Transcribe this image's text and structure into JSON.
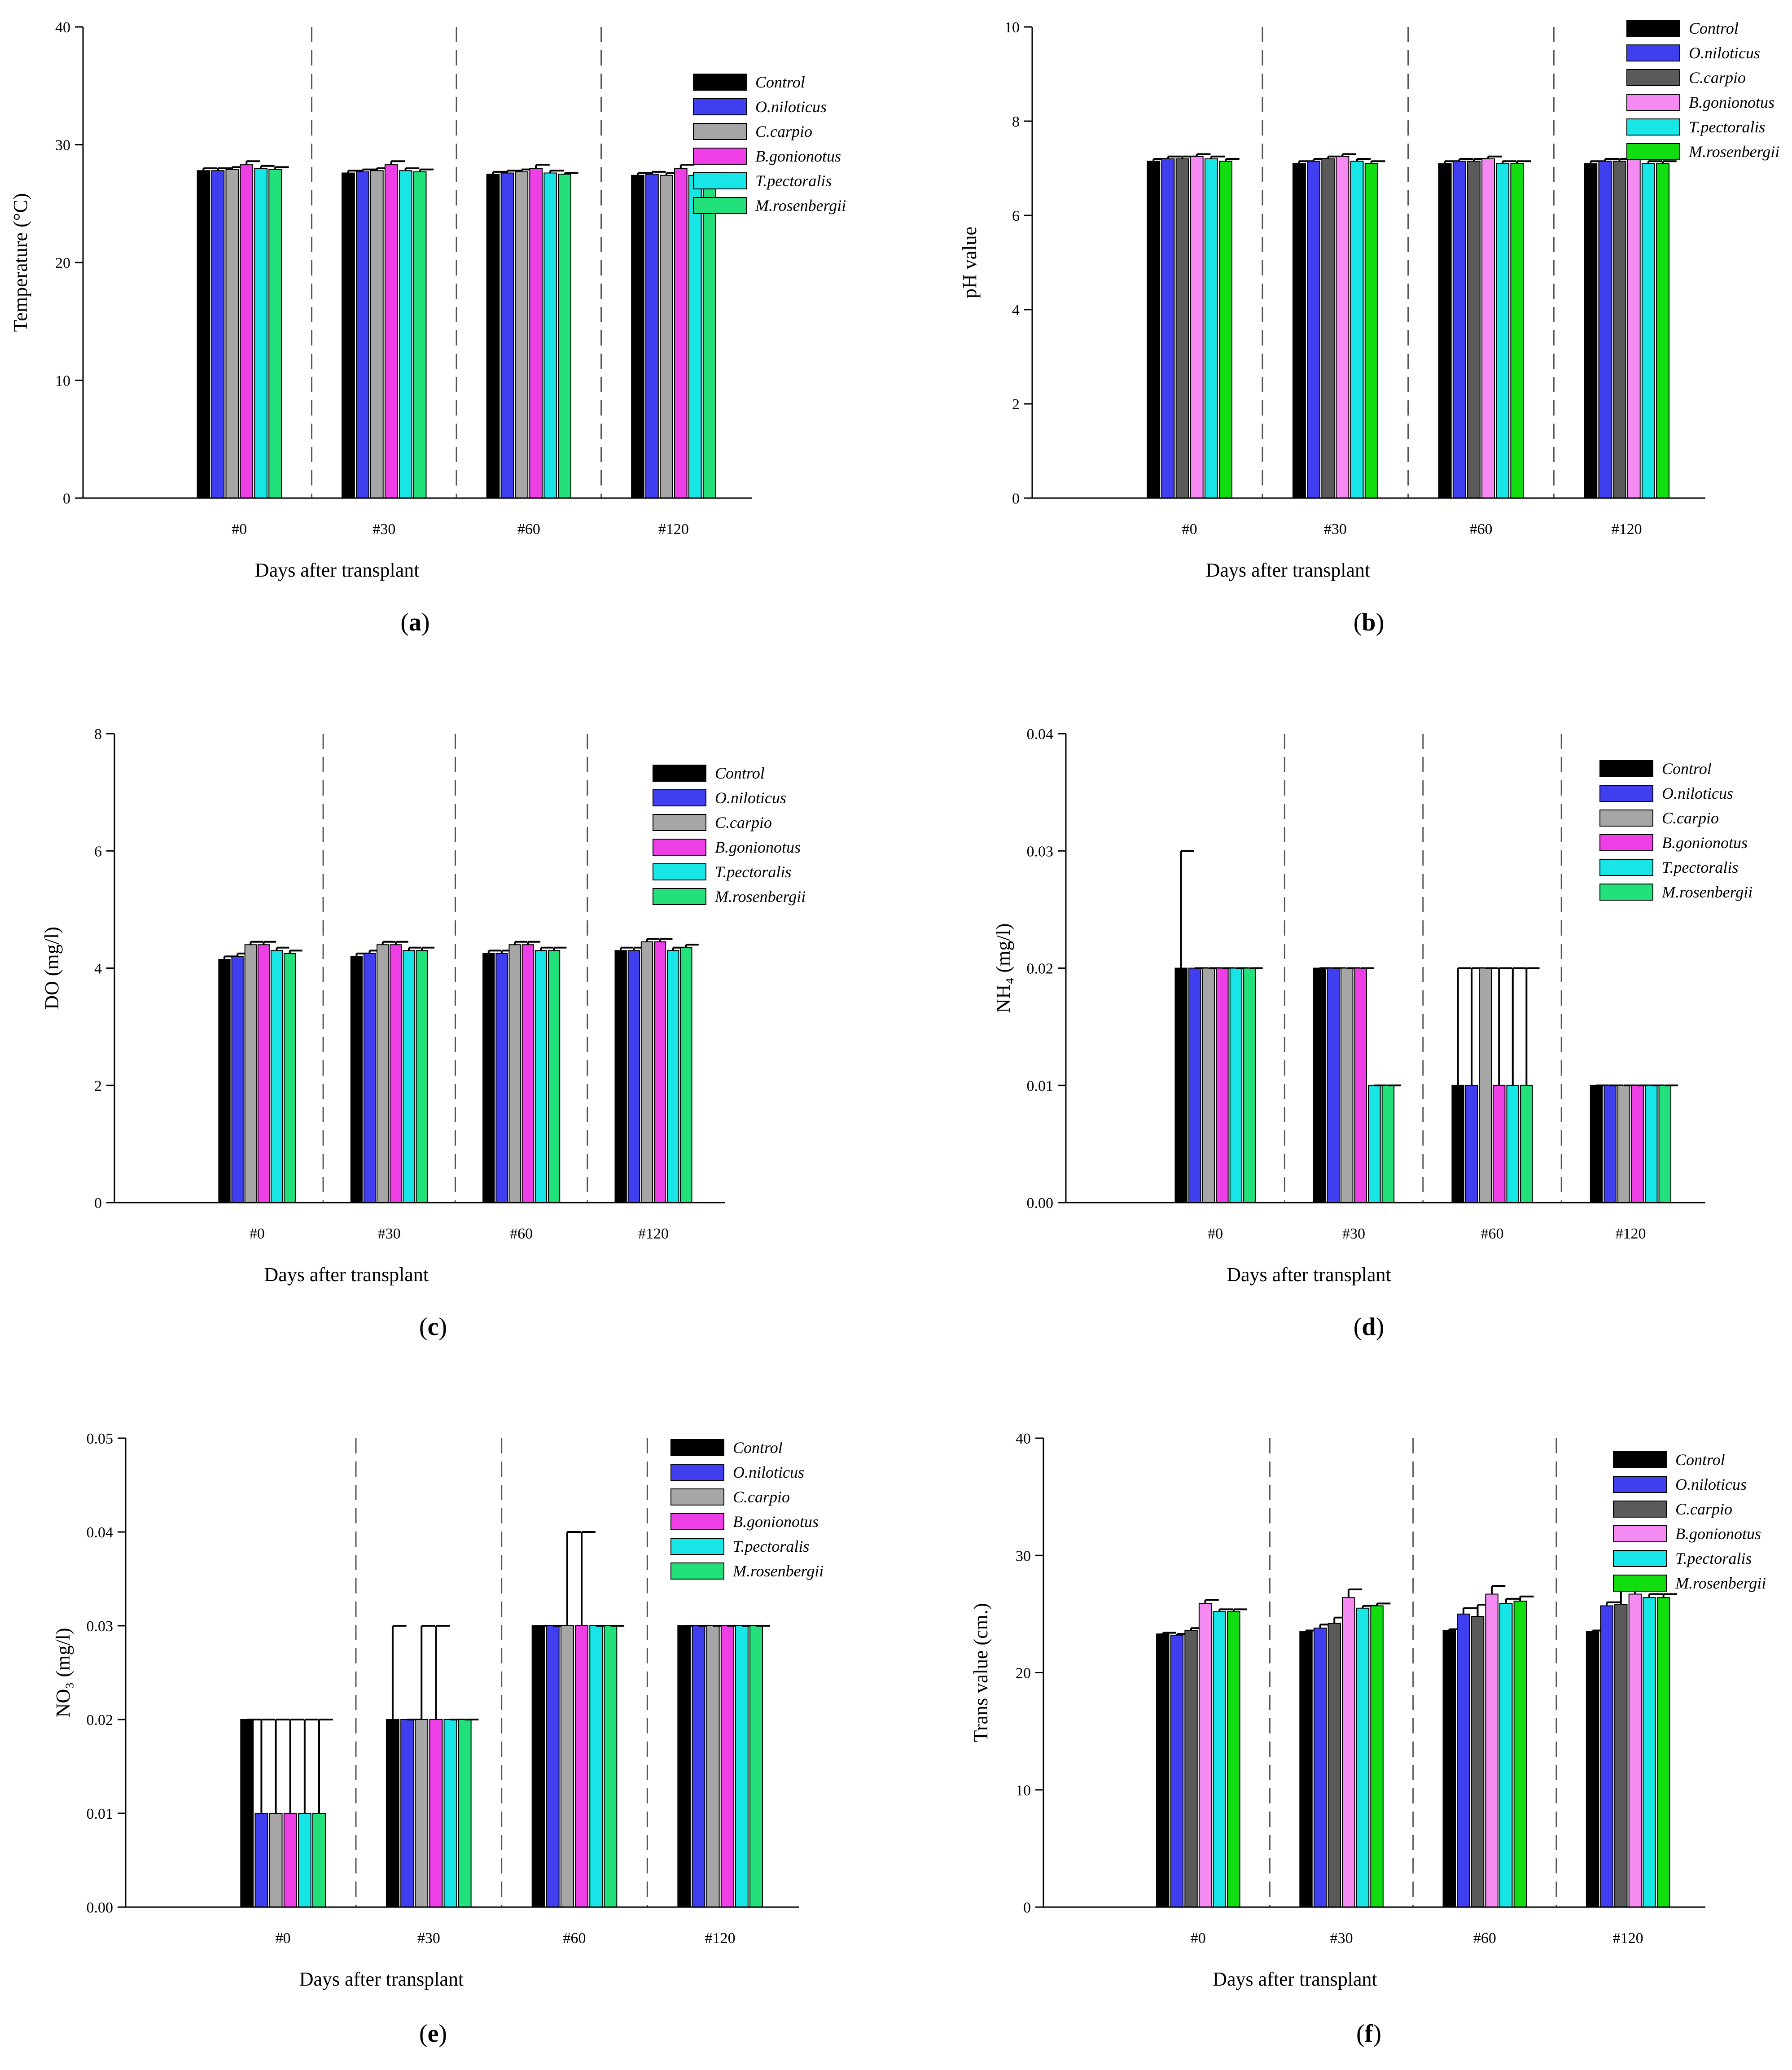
{
  "figure": {
    "panel_count": 6
  },
  "chart_data": [
    {
      "id": "a",
      "type": "bar",
      "panel_label": "a",
      "title": "",
      "xlabel": "Days after transplant",
      "ylabel": "Temperature (°C)",
      "ylim": [
        0,
        40
      ],
      "yticks": [
        "0",
        "10",
        "20",
        "30",
        "40"
      ],
      "categories": [
        "#0",
        "#30",
        "#60",
        "#120"
      ],
      "series": [
        {
          "name": "Control",
          "color": "#000000",
          "values": [
            27.8,
            27.6,
            27.5,
            27.4
          ],
          "errors": [
            0.2,
            0.2,
            0.2,
            0.2
          ]
        },
        {
          "name": "O.niloticus",
          "color": "#3f3ff0",
          "values": [
            27.8,
            27.7,
            27.6,
            27.5
          ],
          "errors": [
            0.2,
            0.2,
            0.2,
            0.2
          ]
        },
        {
          "name": "C.carpio",
          "color": "#a6a6a6",
          "values": [
            27.9,
            27.8,
            27.7,
            27.4
          ],
          "errors": [
            0.2,
            0.2,
            0.2,
            0.2
          ]
        },
        {
          "name": "B.gonionotus",
          "color": "#ee3fe6",
          "values": [
            28.3,
            28.3,
            28.0,
            28.0
          ],
          "errors": [
            0.3,
            0.3,
            0.3,
            0.3
          ]
        },
        {
          "name": "T.pectoralis",
          "color": "#18e6e6",
          "values": [
            28.0,
            27.8,
            27.6,
            27.4
          ],
          "errors": [
            0.2,
            0.2,
            0.2,
            0.2
          ]
        },
        {
          "name": "M.rosenbergii",
          "color": "#22e07a",
          "values": [
            27.9,
            27.7,
            27.5,
            27.5
          ],
          "errors": [
            0.2,
            0.2,
            0.1,
            0.1
          ]
        }
      ],
      "legend_position": "top-right"
    },
    {
      "id": "b",
      "type": "bar",
      "panel_label": "b",
      "title": "",
      "xlabel": "Days after transplant",
      "ylabel": "pH  value",
      "ylim": [
        0,
        10
      ],
      "yticks": [
        "0",
        "2",
        "4",
        "6",
        "8",
        "10"
      ],
      "categories": [
        "#0",
        "#30",
        "#60",
        "#120"
      ],
      "series": [
        {
          "name": "Control",
          "color": "#000000",
          "values": [
            7.15,
            7.1,
            7.1,
            7.1
          ],
          "errors": [
            0.05,
            0.05,
            0.05,
            0.05
          ]
        },
        {
          "name": "O.niloticus",
          "color": "#3f3ff0",
          "values": [
            7.2,
            7.15,
            7.15,
            7.15
          ],
          "errors": [
            0.05,
            0.05,
            0.05,
            0.05
          ]
        },
        {
          "name": "C.carpio",
          "color": "#5a5a5a",
          "values": [
            7.2,
            7.2,
            7.15,
            7.15
          ],
          "errors": [
            0.05,
            0.05,
            0.05,
            0.05
          ]
        },
        {
          "name": "B.gonionotus",
          "color": "#f58bf2",
          "values": [
            7.25,
            7.25,
            7.2,
            7.2
          ],
          "errors": [
            0.05,
            0.05,
            0.05,
            0.05
          ]
        },
        {
          "name": "T.pectoralis",
          "color": "#18e6e6",
          "values": [
            7.2,
            7.15,
            7.1,
            7.1
          ],
          "errors": [
            0.05,
            0.05,
            0.05,
            0.05
          ]
        },
        {
          "name": "M.rosenbergii",
          "color": "#11dd11",
          "values": [
            7.15,
            7.1,
            7.1,
            7.1
          ],
          "errors": [
            0.05,
            0.05,
            0.05,
            0.05
          ]
        }
      ],
      "legend_position": "top-right"
    },
    {
      "id": "c",
      "type": "bar",
      "panel_label": "c",
      "title": "",
      "xlabel": "Days after transplant",
      "ylabel": "DO (mg/l)",
      "ylim": [
        0,
        8
      ],
      "yticks": [
        "0",
        "2",
        "4",
        "6",
        "8"
      ],
      "categories": [
        "#0",
        "#30",
        "#60",
        "#120"
      ],
      "series": [
        {
          "name": "Control",
          "color": "#000000",
          "values": [
            4.15,
            4.2,
            4.25,
            4.3
          ],
          "errors": [
            0.05,
            0.05,
            0.05,
            0.05
          ]
        },
        {
          "name": "O.niloticus",
          "color": "#3f3ff0",
          "values": [
            4.2,
            4.25,
            4.25,
            4.3
          ],
          "errors": [
            0.05,
            0.05,
            0.05,
            0.05
          ]
        },
        {
          "name": "C.carpio",
          "color": "#a6a6a6",
          "values": [
            4.4,
            4.4,
            4.4,
            4.45
          ],
          "errors": [
            0.05,
            0.05,
            0.05,
            0.05
          ]
        },
        {
          "name": "B.gonionotus",
          "color": "#ee3fe6",
          "values": [
            4.4,
            4.4,
            4.4,
            4.45
          ],
          "errors": [
            0.05,
            0.05,
            0.05,
            0.05
          ]
        },
        {
          "name": "T.pectoralis",
          "color": "#18e6e6",
          "values": [
            4.3,
            4.3,
            4.3,
            4.3
          ],
          "errors": [
            0.05,
            0.05,
            0.05,
            0.05
          ]
        },
        {
          "name": "M.rosenbergii",
          "color": "#22e07a",
          "values": [
            4.25,
            4.3,
            4.3,
            4.35
          ],
          "errors": [
            0.05,
            0.05,
            0.05,
            0.05
          ]
        }
      ],
      "legend_position": "top-right"
    },
    {
      "id": "d",
      "type": "bar",
      "panel_label": "d",
      "title": "",
      "xlabel": "Days after transplant",
      "ylabel": "NH₄ (mg/l)",
      "ylim": [
        0,
        0.04
      ],
      "yticks": [
        "0.00",
        "0.01",
        "0.02",
        "0.03",
        "0.04"
      ],
      "categories": [
        "#0",
        "#30",
        "#60",
        "#120"
      ],
      "series": [
        {
          "name": "Control",
          "color": "#000000",
          "values": [
            0.02,
            0.02,
            0.01,
            0.01
          ],
          "errors": [
            0.01,
            0,
            0.01,
            0
          ]
        },
        {
          "name": "O.niloticus",
          "color": "#3f3ff0",
          "values": [
            0.02,
            0.02,
            0.01,
            0.01
          ],
          "errors": [
            0,
            0,
            0.01,
            0
          ]
        },
        {
          "name": "C.carpio",
          "color": "#a6a6a6",
          "values": [
            0.02,
            0.02,
            0.02,
            0.01
          ],
          "errors": [
            0,
            0,
            0,
            0
          ]
        },
        {
          "name": "B.gonionotus",
          "color": "#ee3fe6",
          "values": [
            0.02,
            0.02,
            0.01,
            0.01
          ],
          "errors": [
            0,
            0,
            0.01,
            0
          ]
        },
        {
          "name": "T.pectoralis",
          "color": "#18e6e6",
          "values": [
            0.02,
            0.01,
            0.01,
            0.01
          ],
          "errors": [
            0,
            0,
            0.01,
            0
          ]
        },
        {
          "name": "M.rosenbergii",
          "color": "#22e07a",
          "values": [
            0.02,
            0.01,
            0.01,
            0.01
          ],
          "errors": [
            0,
            0,
            0.01,
            0
          ]
        }
      ],
      "legend_position": "top-right"
    },
    {
      "id": "e",
      "type": "bar",
      "panel_label": "e",
      "title": "",
      "xlabel": "Days after transplant",
      "ylabel": "NO₃  (mg/l)",
      "ylim": [
        0,
        0.05
      ],
      "yticks": [
        "0.00",
        "0.01",
        "0.02",
        "0.03",
        "0.04",
        "0.05"
      ],
      "categories": [
        "#0",
        "#30",
        "#60",
        "#120"
      ],
      "series": [
        {
          "name": "Control",
          "color": "#000000",
          "values": [
            0.02,
            0.02,
            0.03,
            0.03
          ],
          "errors": [
            0,
            0.01,
            0,
            0
          ]
        },
        {
          "name": "O.niloticus",
          "color": "#3f3ff0",
          "values": [
            0.01,
            0.02,
            0.03,
            0.03
          ],
          "errors": [
            0.01,
            0,
            0,
            0
          ]
        },
        {
          "name": "C.carpio",
          "color": "#a6a6a6",
          "values": [
            0.01,
            0.02,
            0.03,
            0.03
          ],
          "errors": [
            0.01,
            0.01,
            0.01,
            0
          ]
        },
        {
          "name": "B.gonionotus",
          "color": "#ee3fe6",
          "values": [
            0.01,
            0.02,
            0.03,
            0.03
          ],
          "errors": [
            0.01,
            0.01,
            0.01,
            0
          ]
        },
        {
          "name": "T.pectoralis",
          "color": "#18e6e6",
          "values": [
            0.01,
            0.02,
            0.03,
            0.03
          ],
          "errors": [
            0.01,
            0,
            0,
            0
          ]
        },
        {
          "name": "M.rosenbergii",
          "color": "#22e07a",
          "values": [
            0.01,
            0.02,
            0.03,
            0.03
          ],
          "errors": [
            0.01,
            0,
            0,
            0
          ]
        }
      ],
      "legend_position": "top-right"
    },
    {
      "id": "f",
      "type": "bar",
      "panel_label": "f",
      "title": "",
      "xlabel": "Days after transplant",
      "ylabel": "Trans value (cm.)",
      "ylim": [
        0,
        40
      ],
      "yticks": [
        "0",
        "10",
        "20",
        "30",
        "40"
      ],
      "categories": [
        "#0",
        "#30",
        "#60",
        "#120"
      ],
      "series": [
        {
          "name": "Control",
          "color": "#000000",
          "values": [
            23.3,
            23.5,
            23.6,
            23.5
          ],
          "errors": [
            0.1,
            0.1,
            0.1,
            0.1
          ]
        },
        {
          "name": "O.niloticus",
          "color": "#3f3ff0",
          "values": [
            23.2,
            23.8,
            25.0,
            25.7
          ],
          "errors": [
            0.1,
            0.3,
            0.5,
            0.3
          ]
        },
        {
          "name": "C.carpio",
          "color": "#5a5a5a",
          "values": [
            23.6,
            24.2,
            24.8,
            25.8
          ],
          "errors": [
            0.2,
            0.5,
            1.0,
            1.4
          ]
        },
        {
          "name": "B.gonionotus",
          "color": "#f58bf2",
          "values": [
            25.9,
            26.4,
            26.7,
            26.7
          ],
          "errors": [
            0.3,
            0.7,
            0.7,
            0.7
          ]
        },
        {
          "name": "T.pectoralis",
          "color": "#18e6e6",
          "values": [
            25.2,
            25.5,
            25.9,
            26.4
          ],
          "errors": [
            0.2,
            0.2,
            0.4,
            0.3
          ]
        },
        {
          "name": "M.rosenbergii",
          "color": "#11dd11",
          "values": [
            25.2,
            25.7,
            26.1,
            26.4
          ],
          "errors": [
            0.2,
            0.2,
            0.4,
            0.3
          ]
        }
      ],
      "legend_position": "top-right"
    }
  ]
}
